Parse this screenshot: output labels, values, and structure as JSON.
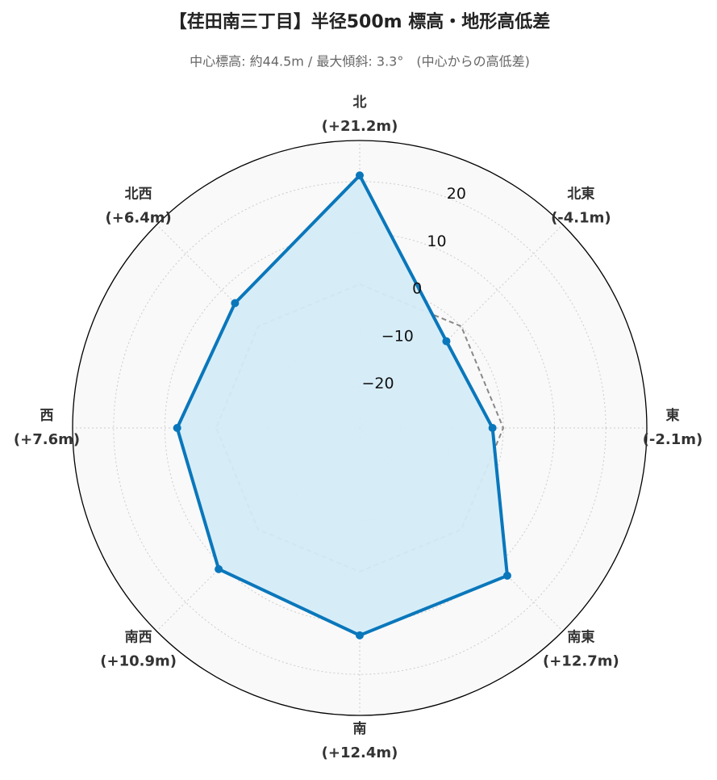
{
  "chart_data": {
    "type": "radar",
    "title": "【荏田南三丁目】半径500m 標高・地形高低差",
    "subtitle": "中心標高: 約44.5m / 最大傾斜: 3.3°　(中心からの高低差)",
    "categories": [
      "北",
      "北東",
      "東",
      "南東",
      "南",
      "南西",
      "西",
      "北西"
    ],
    "values": [
      21.2,
      -4.1,
      -2.1,
      12.7,
      12.4,
      10.9,
      7.6,
      6.4
    ],
    "value_labels": [
      "(+21.2m)",
      "(-4.1m)",
      "(-2.1m)",
      "(+12.7m)",
      "(+12.4m)",
      "(+10.9m)",
      "(+7.6m)",
      "(+6.4m)"
    ],
    "color": "#0a77bb",
    "fill_color": "#d4ecf8",
    "ylim": [
      -28,
      28
    ],
    "yticks": [
      {
        "value": -20,
        "label": "−20"
      },
      {
        "value": -10,
        "label": "−10"
      },
      0,
      10,
      20
    ],
    "grid": true
  }
}
